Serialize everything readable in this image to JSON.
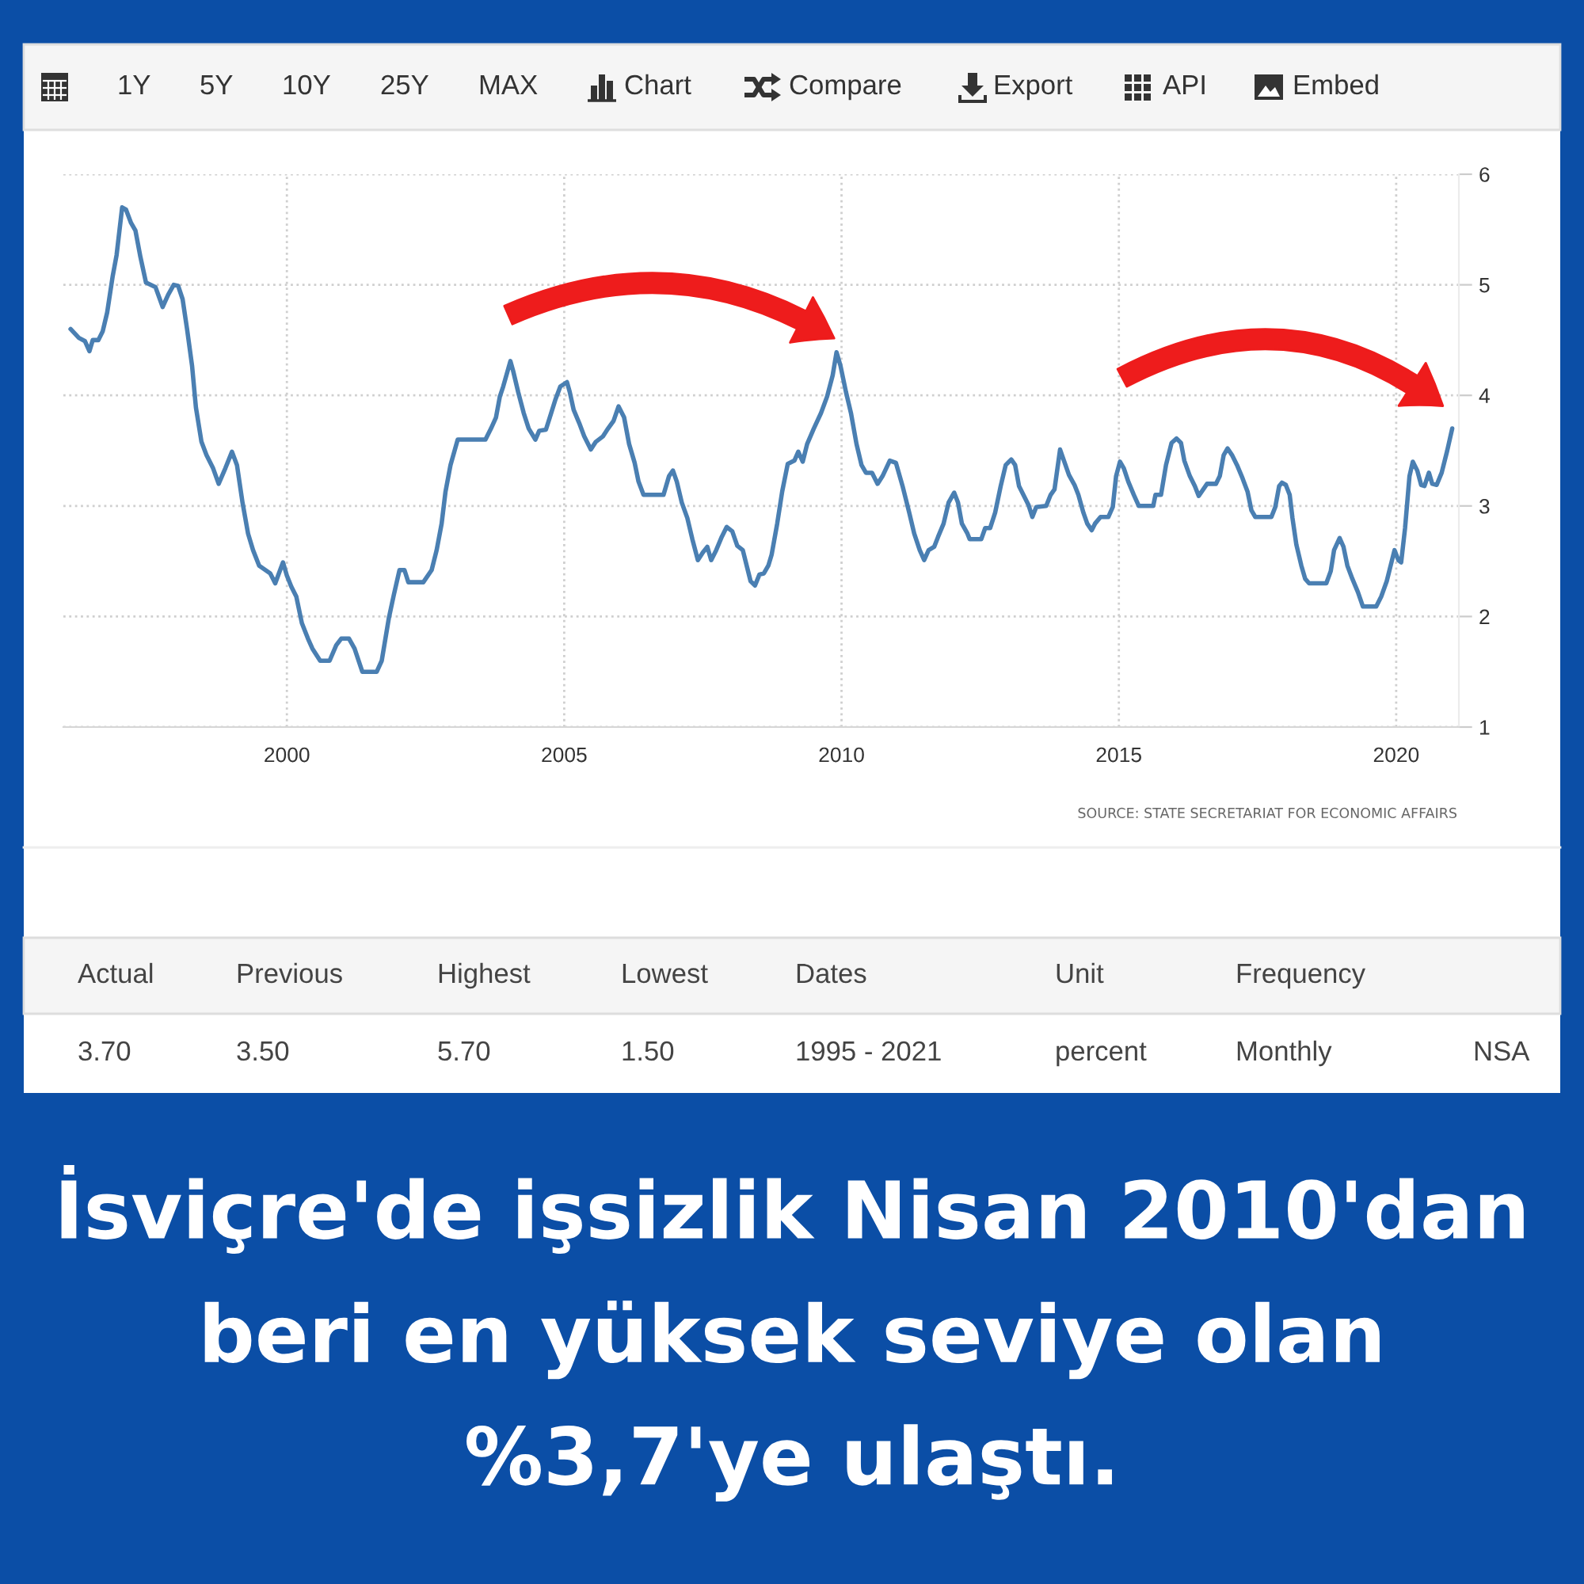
{
  "chart_data": {
    "type": "line",
    "title": "İsviçre'de işsizlik Nisan 2010'dan beri en yüksek seviye olan %3,7'ye ulaştı.",
    "x": [
      1996.1,
      1996.25,
      1996.36,
      1996.44,
      1996.5,
      1996.6,
      1996.68,
      1996.76,
      1996.86,
      1996.93,
      1997.03,
      1997.1,
      1997.19,
      1997.27,
      1997.36,
      1997.46,
      1997.63,
      1997.76,
      1997.86,
      1997.96,
      1998.04,
      1998.12,
      1998.2,
      1998.29,
      1998.36,
      1998.46,
      1998.55,
      1998.67,
      1998.77,
      1998.89,
      1999.01,
      1999.1,
      1999.2,
      1999.3,
      1999.39,
      1999.5,
      1999.7,
      1999.79,
      1999.93,
      2000.0,
      2000.08,
      2000.17,
      2000.27,
      2000.38,
      2000.46,
      2000.6,
      2000.77,
      2000.89,
      2000.98,
      2001.12,
      2001.22,
      2001.36,
      2001.62,
      2001.71,
      2001.84,
      2001.93,
      2002.03,
      2002.12,
      2002.19,
      2002.46,
      2002.61,
      2002.7,
      2002.79,
      2002.86,
      2002.95,
      2003.08,
      2003.58,
      2003.68,
      2003.77,
      2003.84,
      2003.9,
      2004.03,
      2004.08,
      2004.17,
      2004.27,
      2004.36,
      2004.48,
      2004.55,
      2004.67,
      2004.74,
      2004.84,
      2004.93,
      2005.05,
      2005.1,
      2005.17,
      2005.27,
      2005.36,
      2005.48,
      2005.57,
      2005.7,
      2005.79,
      2005.89,
      2005.98,
      2006.08,
      2006.17,
      2006.27,
      2006.34,
      2006.43,
      2006.79,
      2006.89,
      2006.96,
      2007.03,
      2007.12,
      2007.22,
      2007.31,
      2007.41,
      2007.5,
      2007.58,
      2007.65,
      2007.74,
      2007.84,
      2007.93,
      2008.03,
      2008.12,
      2008.22,
      2008.3,
      2008.36,
      2008.44,
      2008.52,
      2008.6,
      2008.68,
      2008.74,
      2008.84,
      2008.93,
      2009.03,
      2009.15,
      2009.22,
      2009.3,
      2009.38,
      2009.5,
      2009.63,
      2009.74,
      2009.84,
      2009.91,
      2009.98,
      2010.08,
      2010.17,
      2010.27,
      2010.36,
      2010.44,
      2010.55,
      2010.65,
      2010.74,
      2010.87,
      2010.98,
      2011.1,
      2011.22,
      2011.31,
      2011.41,
      2011.49,
      2011.57,
      2011.67,
      2011.74,
      2011.84,
      2011.93,
      2012.03,
      2012.1,
      2012.17,
      2012.27,
      2012.31,
      2012.52,
      2012.59,
      2012.68,
      2012.77,
      2012.87,
      2012.96,
      2013.06,
      2013.13,
      2013.2,
      2013.3,
      2013.37,
      2013.44,
      2013.51,
      2013.69,
      2013.77,
      2013.84,
      2013.94,
      2014.01,
      2014.1,
      2014.2,
      2014.27,
      2014.36,
      2014.43,
      2014.51,
      2014.57,
      2014.67,
      2014.81,
      2014.89,
      2014.95,
      2015.02,
      2015.09,
      2015.17,
      2015.27,
      2015.36,
      2015.62,
      2015.66,
      2015.76,
      2015.85,
      2015.95,
      2016.04,
      2016.12,
      2016.18,
      2016.28,
      2016.37,
      2016.44,
      2016.59,
      2016.75,
      2016.82,
      2016.89,
      2016.96,
      2017.04,
      2017.13,
      2017.23,
      2017.32,
      2017.39,
      2017.46,
      2017.75,
      2017.82,
      2017.89,
      2017.94,
      2018.01,
      2018.08,
      2018.13,
      2018.2,
      2018.29,
      2018.36,
      2018.43,
      2018.74,
      2018.82,
      2018.88,
      2018.98,
      2019.05,
      2019.12,
      2019.21,
      2019.31,
      2019.4,
      2019.64,
      2019.73,
      2019.83,
      2019.9,
      2019.97,
      2020.04,
      2020.09,
      2020.16,
      2020.24,
      2020.3,
      2020.38,
      2020.45,
      2020.51,
      2020.59,
      2020.65,
      2020.73,
      2020.82,
      2020.92,
      2021.01
    ],
    "series": [
      {
        "color": "#4a7fb2",
        "values": [
          4.6,
          4.52,
          4.49,
          4.4,
          4.5,
          4.5,
          4.58,
          4.75,
          5.08,
          5.27,
          5.7,
          5.68,
          5.56,
          5.49,
          5.25,
          5.02,
          4.98,
          4.8,
          4.91,
          5.0,
          4.99,
          4.87,
          4.6,
          4.27,
          3.89,
          3.58,
          3.46,
          3.34,
          3.2,
          3.34,
          3.49,
          3.37,
          3.03,
          2.75,
          2.6,
          2.46,
          2.39,
          2.3,
          2.49,
          2.37,
          2.27,
          2.18,
          1.94,
          1.8,
          1.71,
          1.6,
          1.6,
          1.74,
          1.8,
          1.8,
          1.71,
          1.5,
          1.5,
          1.6,
          1.99,
          2.2,
          2.42,
          2.42,
          2.31,
          2.31,
          2.42,
          2.6,
          2.84,
          3.13,
          3.37,
          3.6,
          3.6,
          3.7,
          3.8,
          3.99,
          4.08,
          4.31,
          4.22,
          4.03,
          3.84,
          3.7,
          3.6,
          3.68,
          3.69,
          3.8,
          3.96,
          4.08,
          4.12,
          4.03,
          3.87,
          3.75,
          3.63,
          3.51,
          3.58,
          3.63,
          3.7,
          3.77,
          3.9,
          3.8,
          3.56,
          3.39,
          3.22,
          3.1,
          3.1,
          3.27,
          3.32,
          3.22,
          3.03,
          2.89,
          2.7,
          2.51,
          2.58,
          2.63,
          2.51,
          2.6,
          2.72,
          2.81,
          2.77,
          2.64,
          2.6,
          2.44,
          2.32,
          2.28,
          2.38,
          2.39,
          2.46,
          2.56,
          2.84,
          3.13,
          3.38,
          3.41,
          3.49,
          3.4,
          3.56,
          3.7,
          3.84,
          3.99,
          4.18,
          4.39,
          4.27,
          4.03,
          3.84,
          3.56,
          3.37,
          3.3,
          3.3,
          3.2,
          3.27,
          3.41,
          3.39,
          3.18,
          2.94,
          2.75,
          2.6,
          2.51,
          2.6,
          2.63,
          2.72,
          2.84,
          3.03,
          3.12,
          3.03,
          2.84,
          2.75,
          2.7,
          2.7,
          2.8,
          2.8,
          2.94,
          3.18,
          3.37,
          3.42,
          3.37,
          3.18,
          3.08,
          3.01,
          2.9,
          2.99,
          3.0,
          3.1,
          3.15,
          3.51,
          3.41,
          3.28,
          3.19,
          3.1,
          2.94,
          2.84,
          2.78,
          2.84,
          2.9,
          2.9,
          2.99,
          3.27,
          3.4,
          3.34,
          3.22,
          3.1,
          3.0,
          3.0,
          3.1,
          3.1,
          3.37,
          3.57,
          3.61,
          3.57,
          3.41,
          3.27,
          3.18,
          3.09,
          3.2,
          3.2,
          3.27,
          3.46,
          3.52,
          3.46,
          3.37,
          3.25,
          3.13,
          2.96,
          2.9,
          2.9,
          2.99,
          3.18,
          3.21,
          3.19,
          3.1,
          2.89,
          2.65,
          2.46,
          2.34,
          2.3,
          2.3,
          2.41,
          2.6,
          2.71,
          2.63,
          2.46,
          2.34,
          2.22,
          2.09,
          2.09,
          2.18,
          2.32,
          2.46,
          2.6,
          2.51,
          2.49,
          2.8,
          3.27,
          3.4,
          3.32,
          3.19,
          3.18,
          3.3,
          3.2,
          3.19,
          3.3,
          3.5,
          3.7
        ]
      }
    ],
    "xlim": [
      1995.97,
      2021.13
    ],
    "ylim": [
      1,
      6
    ],
    "xticks": [
      2000,
      2005,
      2010,
      2015,
      2020
    ],
    "yticks": [
      1,
      2,
      3,
      4,
      5,
      6
    ],
    "grid": true,
    "marker": "none",
    "line_style": "solid",
    "annotations": [
      "1Y",
      "5Y",
      "10Y",
      "25Y",
      "MAX",
      "Chart",
      "Compare",
      "Export",
      "API",
      "Embed",
      "SOURCE: STATE SECRETARIAT FOR ECONOMIC AFFAIRS",
      "Actual",
      "Previous",
      "Highest",
      "Lowest",
      "Dates",
      "Unit",
      "Frequency",
      "3.70",
      "3.50",
      "5.70",
      "1.50",
      "1995 - 2021",
      "percent",
      "Monthly",
      "NSA"
    ]
  }
}
